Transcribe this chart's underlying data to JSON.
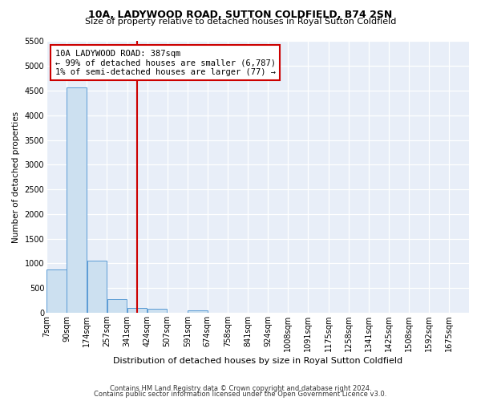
{
  "title": "10A, LADYWOOD ROAD, SUTTON COLDFIELD, B74 2SN",
  "subtitle": "Size of property relative to detached houses in Royal Sutton Coldfield",
  "xlabel": "Distribution of detached houses by size in Royal Sutton Coldfield",
  "ylabel": "Number of detached properties",
  "footer_line1": "Contains HM Land Registry data © Crown copyright and database right 2024.",
  "footer_line2": "Contains public sector information licensed under the Open Government Licence v3.0.",
  "annotation_line1": "10A LADYWOOD ROAD: 387sqm",
  "annotation_line2": "← 99% of detached houses are smaller (6,787)",
  "annotation_line3": "1% of semi-detached houses are larger (77) →",
  "property_size_bin_index": 4,
  "bar_color": "#cce0f0",
  "bar_edge_color": "#5b9bd5",
  "redline_color": "#cc0000",
  "annotation_box_color": "#cc0000",
  "background_color": "#e8eef8",
  "bins": [
    7,
    90,
    174,
    257,
    341,
    424,
    507,
    591,
    674,
    758,
    841,
    924,
    1008,
    1091,
    1175,
    1258,
    1341,
    1425,
    1508,
    1592,
    1675
  ],
  "bin_labels": [
    "7sqm",
    "90sqm",
    "174sqm",
    "257sqm",
    "341sqm",
    "424sqm",
    "507sqm",
    "591sqm",
    "674sqm",
    "758sqm",
    "841sqm",
    "924sqm",
    "1008sqm",
    "1091sqm",
    "1175sqm",
    "1258sqm",
    "1341sqm",
    "1425sqm",
    "1508sqm",
    "1592sqm",
    "1675sqm"
  ],
  "counts": [
    880,
    4560,
    1060,
    280,
    90,
    75,
    0,
    50,
    0,
    0,
    0,
    0,
    0,
    0,
    0,
    0,
    0,
    0,
    0,
    0
  ],
  "ylim": [
    0,
    5500
  ],
  "yticks": [
    0,
    500,
    1000,
    1500,
    2000,
    2500,
    3000,
    3500,
    4000,
    4500,
    5000,
    5500
  ],
  "title_fontsize": 9,
  "subtitle_fontsize": 8,
  "ylabel_fontsize": 7.5,
  "xlabel_fontsize": 8,
  "tick_fontsize": 7,
  "footer_fontsize": 6
}
